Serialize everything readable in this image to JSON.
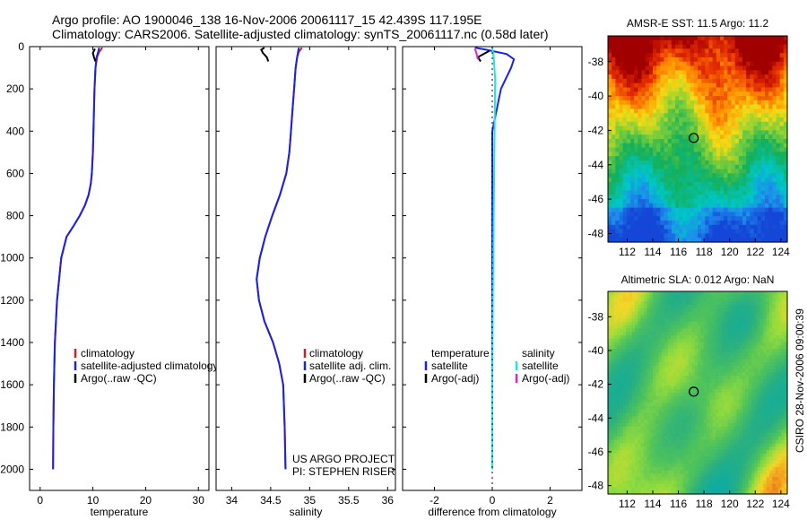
{
  "header": {
    "line1": "Argo profile: AO 1900046_138 16-Nov-2006 20061117_15 42.439S 117.195E",
    "line2": "Climatology: CARS2006. Satellite-adjusted climatology: synTS_20061117.nc (0.58d later)"
  },
  "colors": {
    "climatology": "#cc2222",
    "satellite": "#1a22e6",
    "argo": "#000000",
    "sal_satellite": "#22e6e6",
    "sal_argo": "#dd22dd"
  },
  "chart_data": [
    {
      "type": "line",
      "name": "temperature-profile",
      "xlabel": "temperature",
      "ylabel": "",
      "xlim": [
        -2,
        32
      ],
      "ylim": [
        0,
        2100
      ],
      "y_inverted": true,
      "xticks": [
        0,
        10,
        20,
        30
      ],
      "yticks": [
        0,
        200,
        400,
        600,
        800,
        1000,
        1200,
        1400,
        1600,
        1800,
        2000
      ],
      "legend": [
        "climatology",
        "satellite-adjusted climatology",
        "Argo(..raw -QC)"
      ],
      "series": [
        {
          "name": "climatology",
          "color": "#cc2222",
          "x": [
            11.8,
            11.2,
            10.8,
            10.5,
            10.3,
            10.2,
            10.1,
            10.0,
            9.9,
            9.8,
            9.6,
            9.2,
            8.5,
            7.5,
            6.3,
            5.0,
            4.0,
            3.2,
            2.8,
            2.6,
            2.5,
            2.45
          ],
          "y": [
            5,
            25,
            50,
            100,
            200,
            300,
            400,
            500,
            550,
            600,
            650,
            700,
            750,
            800,
            850,
            900,
            1000,
            1200,
            1400,
            1600,
            1800,
            2000
          ]
        },
        {
          "name": "satellite",
          "color": "#1a22e6",
          "x": [
            11.2,
            11.0,
            10.7,
            10.5,
            10.3,
            10.2,
            10.1,
            10.0,
            9.9,
            9.8,
            9.6,
            9.2,
            8.5,
            7.5,
            6.3,
            5.0,
            4.0,
            3.2,
            2.8,
            2.6,
            2.5,
            2.45
          ],
          "y": [
            5,
            25,
            50,
            100,
            200,
            300,
            400,
            500,
            550,
            600,
            650,
            700,
            750,
            800,
            850,
            900,
            1000,
            1200,
            1400,
            1600,
            1800,
            2000
          ]
        },
        {
          "name": "argo",
          "color": "#000000",
          "x": [
            10.4,
            10.0,
            10.2,
            10.5
          ],
          "y": [
            10,
            30,
            50,
            70
          ]
        }
      ]
    },
    {
      "type": "line",
      "name": "salinity-profile",
      "xlabel": "salinity",
      "ylabel": "",
      "xlim": [
        33.8,
        36.1
      ],
      "ylim": [
        0,
        2100
      ],
      "y_inverted": true,
      "xticks": [
        34,
        34.5,
        35,
        35.5,
        36
      ],
      "xticklabels": [
        "34",
        "34.5",
        "35",
        "35.5",
        "36"
      ],
      "legend": [
        "climatology",
        "satellite adj. clim.",
        "Argo(..raw -QC)"
      ],
      "annotation": [
        "US ARGO PROJECT",
        "PI: STEPHEN RISER"
      ],
      "series": [
        {
          "name": "climatology",
          "color": "#cc2222",
          "x": [
            34.9,
            34.86,
            34.84,
            34.82,
            34.8,
            34.78,
            34.76,
            34.74,
            34.7,
            34.62,
            34.52,
            34.43,
            34.36,
            34.32,
            34.35,
            34.42,
            34.53,
            34.61,
            34.66,
            34.68,
            34.69
          ],
          "y": [
            5,
            25,
            50,
            100,
            200,
            300,
            400,
            500,
            600,
            700,
            800,
            900,
            1000,
            1100,
            1200,
            1300,
            1400,
            1500,
            1600,
            1800,
            2000
          ]
        },
        {
          "name": "satellite",
          "color": "#1a22e6",
          "x": [
            34.86,
            34.84,
            34.82,
            34.8,
            34.78,
            34.76,
            34.74,
            34.7,
            34.62,
            34.52,
            34.43,
            34.36,
            34.32,
            34.35,
            34.42,
            34.53,
            34.61,
            34.66,
            34.68,
            34.69
          ],
          "y": [
            5,
            50,
            100,
            200,
            300,
            400,
            500,
            600,
            700,
            800,
            900,
            1000,
            1100,
            1200,
            1300,
            1400,
            1500,
            1600,
            1800,
            2000
          ]
        },
        {
          "name": "argo",
          "color": "#000000",
          "x": [
            34.42,
            34.38,
            34.4,
            34.45,
            34.47
          ],
          "y": [
            5,
            15,
            30,
            50,
            70
          ]
        }
      ]
    },
    {
      "type": "line",
      "name": "difference-profile",
      "xlabel": "difference from climatology",
      "ylabel": "",
      "xlim": [
        -3.1,
        3.1
      ],
      "ylim": [
        0,
        2100
      ],
      "y_inverted": true,
      "xticks": [
        -2,
        0,
        2
      ],
      "legend_left": [
        "temperature",
        "satellite",
        "Argo(-adj)"
      ],
      "legend_right": [
        "salinity",
        "satellite",
        "Argo(-adj)"
      ],
      "series": [
        {
          "name": "temp-satellite",
          "color": "#1a22e6",
          "x": [
            -0.6,
            -0.2,
            0.5,
            0.75,
            0.65,
            0.3,
            0.0,
            0.0,
            0.0
          ],
          "y": [
            5,
            15,
            35,
            60,
            100,
            200,
            400,
            1000,
            2000
          ]
        },
        {
          "name": "sal-satellite",
          "color": "#22e6e6",
          "x": [
            0.0,
            0.05,
            0.1,
            0.08,
            0.05,
            0.02,
            0.0,
            0.0
          ],
          "y": [
            5,
            50,
            150,
            400,
            800,
            1200,
            1600,
            2000
          ]
        },
        {
          "name": "temp-argo",
          "color": "#000000",
          "x": [
            -0.1,
            -0.3,
            -0.5,
            -0.4
          ],
          "y": [
            20,
            35,
            50,
            70
          ]
        },
        {
          "name": "sal-argo",
          "color": "#dd22dd",
          "x": [
            -0.6,
            -0.55,
            -0.5
          ],
          "y": [
            10,
            30,
            60
          ]
        }
      ]
    },
    {
      "type": "heatmap",
      "name": "amsr-sst-map",
      "title": "AMSR-E SST: 11.5 Argo: 11.2",
      "xlim": [
        110.5,
        124.5
      ],
      "ylim": [
        -48.5,
        -36.5
      ],
      "xticks": [
        112,
        114,
        116,
        118,
        120,
        122,
        124
      ],
      "yticks": [
        -38,
        -40,
        -42,
        -44,
        -46,
        -48
      ],
      "marker": {
        "lon": 117.195,
        "lat": -42.439
      }
    },
    {
      "type": "heatmap",
      "name": "altimetric-sla-map",
      "title": "Altimetric SLA: 0.012 Argo: NaN",
      "xlim": [
        110.5,
        124.5
      ],
      "ylim": [
        -48.5,
        -36.5
      ],
      "xticks": [
        112,
        114,
        116,
        118,
        120,
        122,
        124
      ],
      "yticks": [
        -38,
        -40,
        -42,
        -44,
        -46,
        -48
      ],
      "marker": {
        "lon": 117.195,
        "lat": -42.439
      }
    }
  ],
  "credit": "CSIRO 28-Nov-2006 09:00:39"
}
